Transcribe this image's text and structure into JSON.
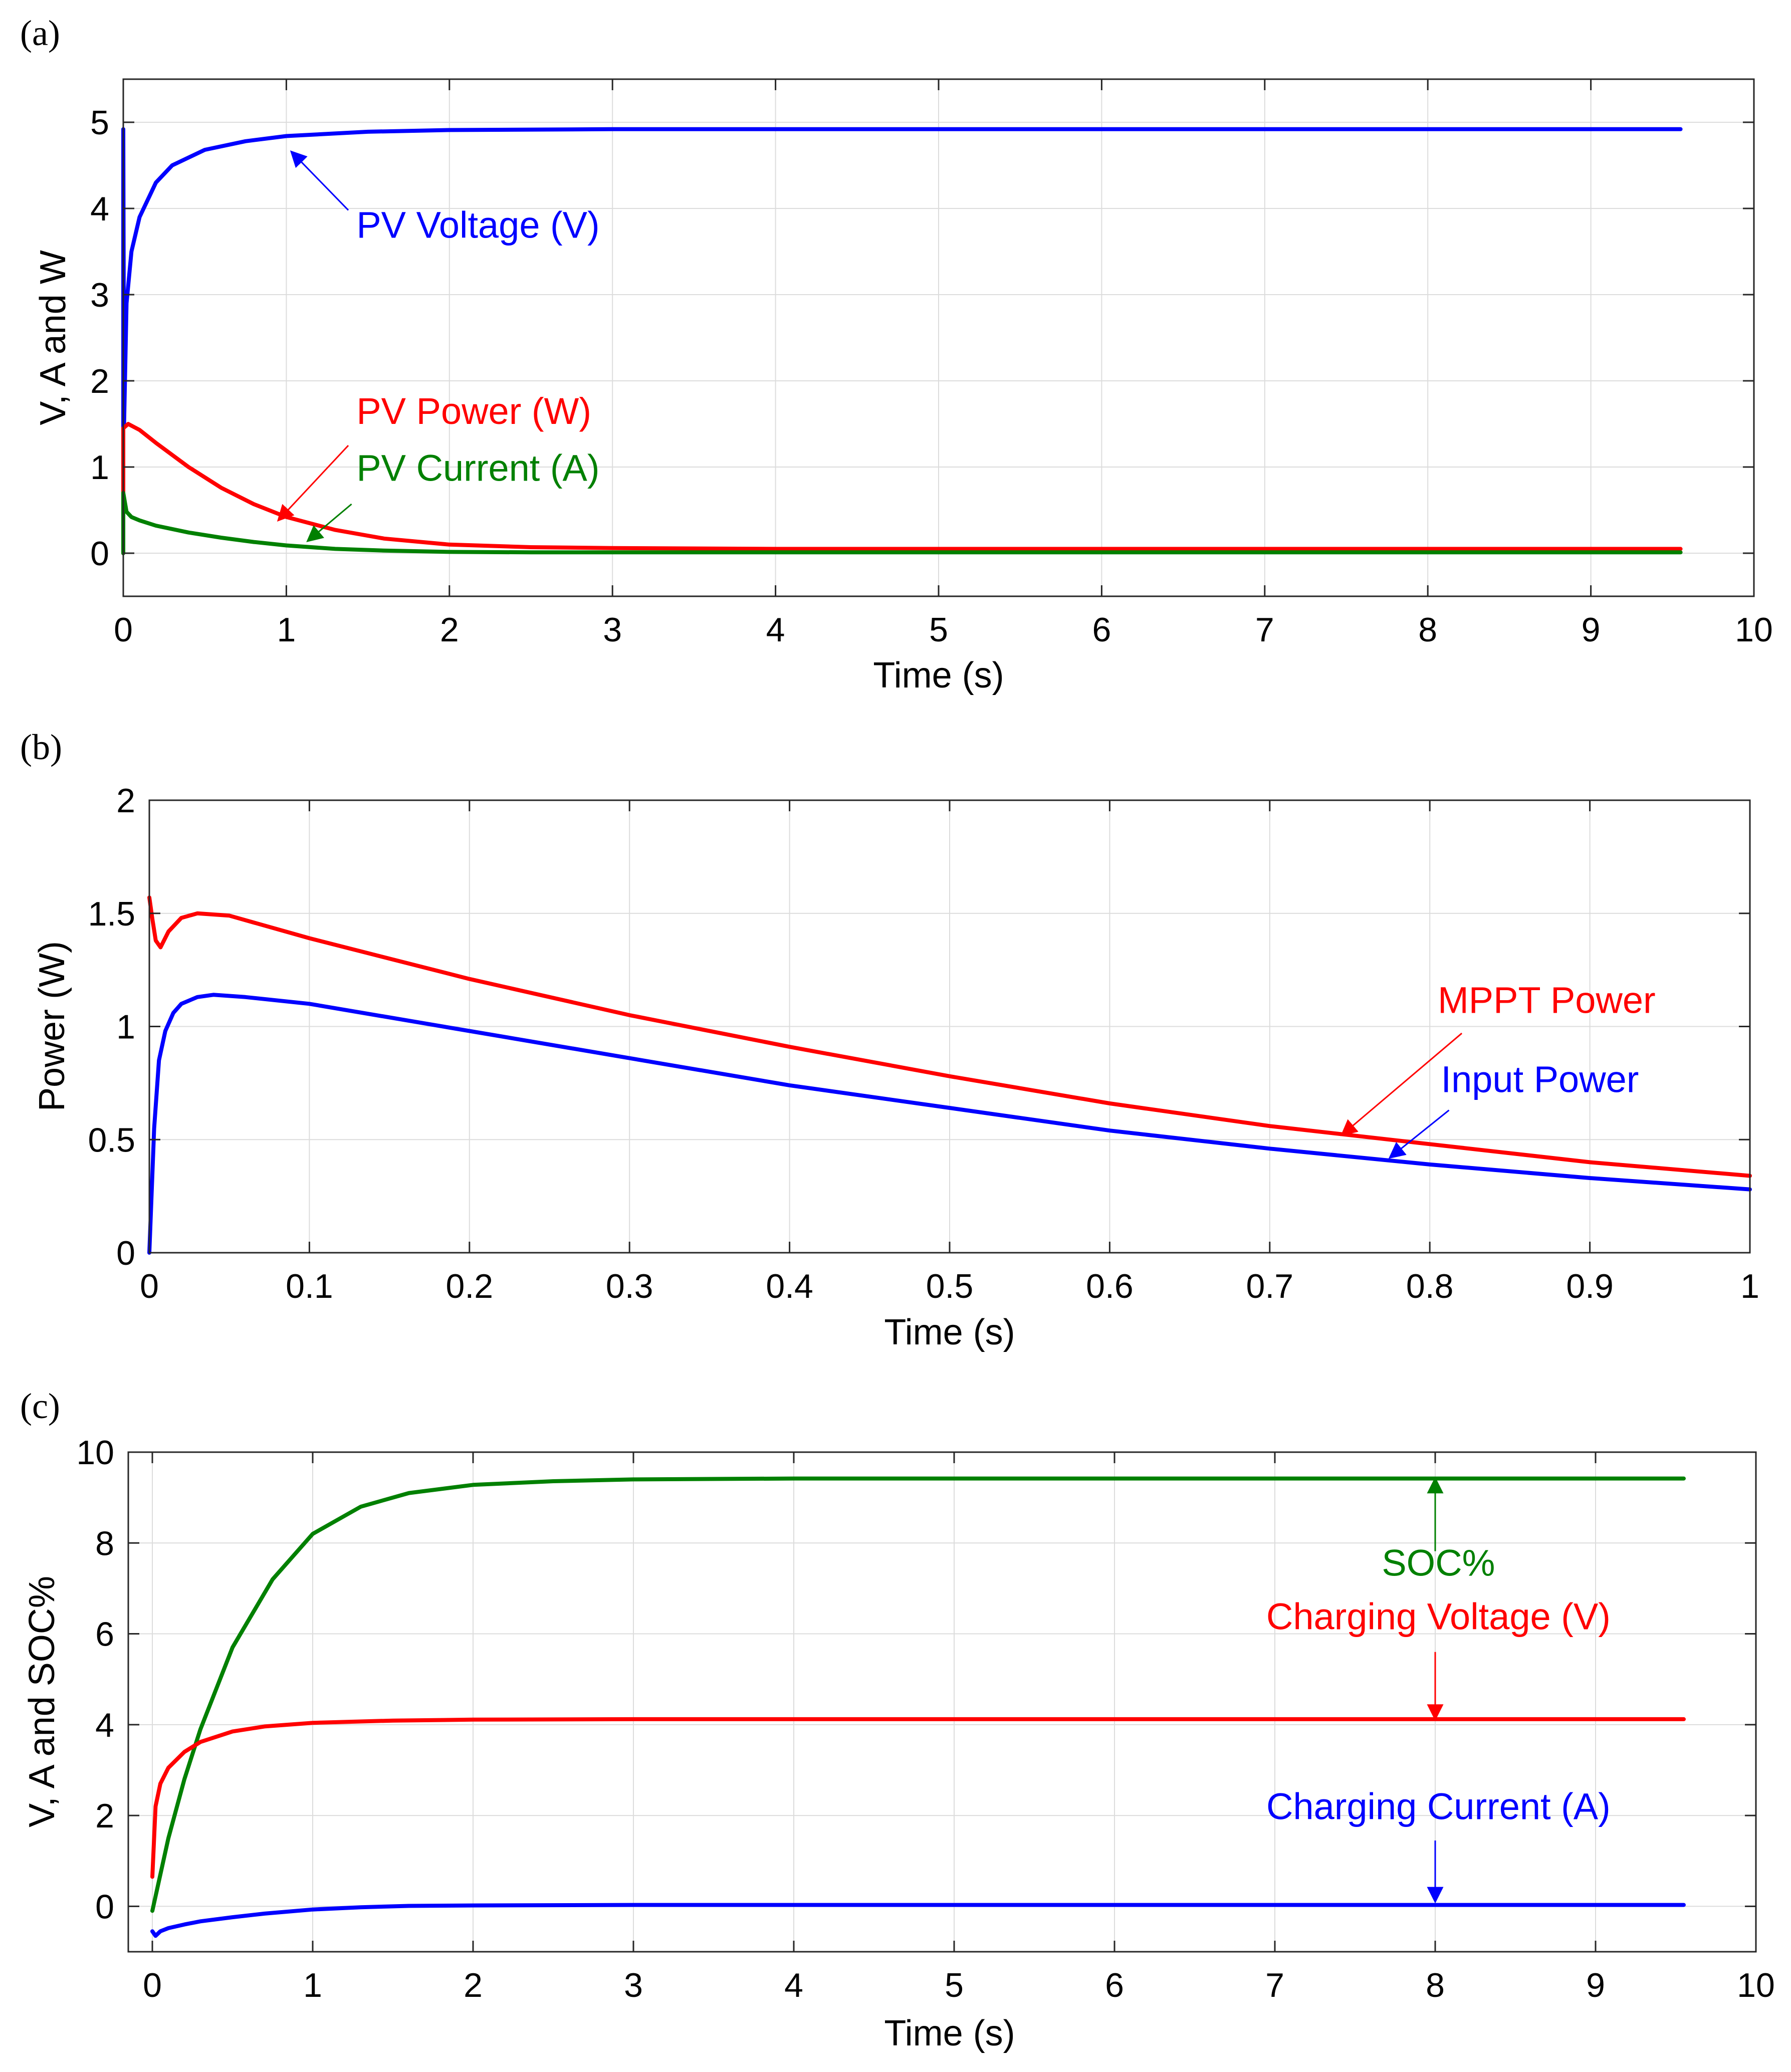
{
  "colors": {
    "blue": "#0000ff",
    "red": "#ff0000",
    "green": "#008000",
    "axis": "#262626",
    "grid": "#dcdcdc"
  },
  "chart_data": [
    {
      "panel_label": "(a)",
      "type": "line",
      "title": "",
      "xlabel": "Time (s)",
      "ylabel": "V, A and W",
      "xlim": [
        0,
        10
      ],
      "ylim": [
        -0.5,
        5.5
      ],
      "xticks": [
        0,
        1,
        2,
        3,
        4,
        5,
        6,
        7,
        8,
        9,
        10
      ],
      "xtick_labels": [
        "0",
        "1",
        "2",
        "3",
        "4",
        "5",
        "6",
        "7",
        "8",
        "9",
        "10"
      ],
      "yticks": [
        0,
        1,
        2,
        3,
        4,
        5
      ],
      "ytick_labels": [
        "0",
        "1",
        "2",
        "3",
        "4",
        "5"
      ],
      "grid": true,
      "series": [
        {
          "name": "PV Voltage (V)",
          "color": "#0000ff",
          "x": [
            0,
            0,
            0.005,
            0.02,
            0.05,
            0.1,
            0.2,
            0.3,
            0.5,
            0.75,
            1,
            1.5,
            2,
            3,
            4,
            6,
            9.55
          ],
          "y": [
            0,
            4.92,
            1.5,
            2.9,
            3.5,
            3.9,
            4.3,
            4.5,
            4.68,
            4.78,
            4.84,
            4.89,
            4.91,
            4.92,
            4.92,
            4.92,
            4.92
          ]
        },
        {
          "name": "PV Power (W)",
          "color": "#ff0000",
          "x": [
            0,
            0,
            0.03,
            0.1,
            0.2,
            0.4,
            0.6,
            0.8,
            1,
            1.3,
            1.6,
            2,
            2.5,
            3,
            4,
            6,
            9.55
          ],
          "y": [
            0,
            1.45,
            1.5,
            1.43,
            1.28,
            1.0,
            0.76,
            0.57,
            0.42,
            0.27,
            0.17,
            0.1,
            0.07,
            0.06,
            0.05,
            0.05,
            0.05
          ]
        },
        {
          "name": "PV Current (A)",
          "color": "#008000",
          "x": [
            0,
            0,
            0.02,
            0.05,
            0.1,
            0.2,
            0.4,
            0.6,
            0.8,
            1,
            1.3,
            1.6,
            2,
            2.5,
            3,
            5,
            9.55
          ],
          "y": [
            0,
            0.7,
            0.48,
            0.42,
            0.38,
            0.32,
            0.24,
            0.18,
            0.13,
            0.09,
            0.05,
            0.03,
            0.015,
            0.01,
            0.01,
            0.01,
            0.01
          ]
        }
      ],
      "annotations": [
        {
          "text": "PV Voltage (V)",
          "color": "#0000ff",
          "text_x": 1.43,
          "text_y": 3.66,
          "arrow_from": [
            1.38,
            3.98
          ],
          "arrow_to": [
            1.03,
            4.66
          ]
        },
        {
          "text": "PV Power (W)",
          "color": "#ff0000",
          "text_x": 1.43,
          "text_y": 1.5,
          "arrow_from": [
            1.38,
            1.25
          ],
          "arrow_to": [
            0.95,
            0.38
          ]
        },
        {
          "text": "PV Current (A)",
          "color": "#008000",
          "text_x": 1.43,
          "text_y": 0.84,
          "arrow_from": [
            1.4,
            0.57
          ],
          "arrow_to": [
            1.13,
            0.14
          ]
        }
      ]
    },
    {
      "panel_label": "(b)",
      "type": "line",
      "title": "",
      "xlabel": "Time (s)",
      "ylabel": "Power (W)",
      "xlim": [
        0,
        1
      ],
      "ylim": [
        0,
        2
      ],
      "xticks": [
        0,
        0.1,
        0.2,
        0.3,
        0.4,
        0.5,
        0.6,
        0.7,
        0.8,
        0.9,
        1
      ],
      "xtick_labels": [
        "0",
        "0.1",
        "0.2",
        "0.3",
        "0.4",
        "0.5",
        "0.6",
        "0.7",
        "0.8",
        "0.9",
        "1"
      ],
      "yticks": [
        0,
        0.5,
        1,
        1.5,
        2
      ],
      "ytick_labels": [
        "0",
        "0.5",
        "1",
        "1.5",
        "2"
      ],
      "grid": true,
      "series": [
        {
          "name": "MPPT Power",
          "color": "#ff0000",
          "x": [
            0,
            0.002,
            0.004,
            0.007,
            0.012,
            0.02,
            0.03,
            0.05,
            0.1,
            0.2,
            0.3,
            0.4,
            0.5,
            0.6,
            0.7,
            0.8,
            0.9,
            1
          ],
          "y": [
            1.57,
            1.47,
            1.38,
            1.35,
            1.42,
            1.48,
            1.5,
            1.49,
            1.39,
            1.21,
            1.05,
            0.91,
            0.78,
            0.66,
            0.56,
            0.48,
            0.4,
            0.34
          ]
        },
        {
          "name": "Input Power",
          "color": "#0000ff",
          "x": [
            0,
            0.003,
            0.006,
            0.01,
            0.015,
            0.02,
            0.03,
            0.04,
            0.06,
            0.1,
            0.2,
            0.3,
            0.4,
            0.5,
            0.6,
            0.7,
            0.8,
            0.9,
            1
          ],
          "y": [
            0,
            0.55,
            0.85,
            0.98,
            1.06,
            1.1,
            1.13,
            1.14,
            1.13,
            1.1,
            0.98,
            0.86,
            0.74,
            0.64,
            0.54,
            0.46,
            0.39,
            0.33,
            0.28
          ]
        }
      ],
      "annotations": [
        {
          "text": "MPPT Power",
          "color": "#ff0000",
          "text_x": 0.805,
          "text_y": 1.06,
          "arrow_from": [
            0.82,
            0.97
          ],
          "arrow_to": [
            0.745,
            0.52
          ]
        },
        {
          "text": "Input Power",
          "color": "#0000ff",
          "text_x": 0.807,
          "text_y": 0.71,
          "arrow_from": [
            0.812,
            0.63
          ],
          "arrow_to": [
            0.775,
            0.42
          ]
        }
      ]
    },
    {
      "panel_label": "(c)",
      "type": "line",
      "title": "",
      "xlabel": "Time (s)",
      "ylabel": "V, A and SOC%",
      "xlim": [
        -0.15,
        10
      ],
      "ylim": [
        -1,
        10
      ],
      "xticks": [
        0,
        1,
        2,
        3,
        4,
        5,
        6,
        7,
        8,
        9,
        10
      ],
      "xtick_labels": [
        "0",
        "1",
        "2",
        "3",
        "4",
        "5",
        "6",
        "7",
        "8",
        "9",
        "10"
      ],
      "yticks": [
        0,
        2,
        4,
        6,
        8,
        10
      ],
      "ytick_labels": [
        "0",
        "2",
        "4",
        "6",
        "8",
        "10"
      ],
      "grid": true,
      "series": [
        {
          "name": "SOC%",
          "color": "#008000",
          "x": [
            0,
            0.1,
            0.2,
            0.3,
            0.5,
            0.75,
            1,
            1.3,
            1.6,
            2,
            2.5,
            3,
            4,
            6,
            9.55
          ],
          "y": [
            -0.1,
            1.5,
            2.8,
            3.9,
            5.7,
            7.2,
            8.2,
            8.8,
            9.1,
            9.28,
            9.36,
            9.4,
            9.42,
            9.42,
            9.42
          ]
        },
        {
          "name": "Charging Voltage (V)",
          "color": "#ff0000",
          "x": [
            0,
            0.02,
            0.05,
            0.1,
            0.2,
            0.3,
            0.5,
            0.7,
            1,
            1.5,
            2,
            3,
            5,
            9.55
          ],
          "y": [
            0.65,
            2.2,
            2.7,
            3.05,
            3.4,
            3.62,
            3.85,
            3.96,
            4.04,
            4.09,
            4.11,
            4.12,
            4.12,
            4.12
          ]
        },
        {
          "name": "Charging Current (A)",
          "color": "#0000ff",
          "x": [
            0,
            0.02,
            0.05,
            0.1,
            0.2,
            0.3,
            0.5,
            0.7,
            1,
            1.3,
            1.6,
            2,
            3,
            5,
            9.55
          ],
          "y": [
            -0.55,
            -0.65,
            -0.55,
            -0.48,
            -0.4,
            -0.33,
            -0.24,
            -0.16,
            -0.07,
            -0.02,
            0.01,
            0.02,
            0.03,
            0.03,
            0.03
          ]
        }
      ],
      "annotations": [
        {
          "text": "SOC%",
          "color": "#008000",
          "text_x": 8.02,
          "text_y": 7.28,
          "arrow_from": [
            8.0,
            7.82
          ],
          "arrow_to": [
            8.0,
            9.42
          ]
        },
        {
          "text": "Charging Voltage (V)",
          "color": "#ff0000",
          "text_x": 8.02,
          "text_y": 6.1,
          "arrow_from": [
            8.0,
            5.6
          ],
          "arrow_to": [
            8.0,
            4.12
          ]
        },
        {
          "text": "Charging Current (A)",
          "color": "#0000ff",
          "text_x": 8.02,
          "text_y": 1.92,
          "arrow_from": [
            8.0,
            1.45
          ],
          "arrow_to": [
            8.0,
            0.1
          ]
        }
      ]
    }
  ]
}
